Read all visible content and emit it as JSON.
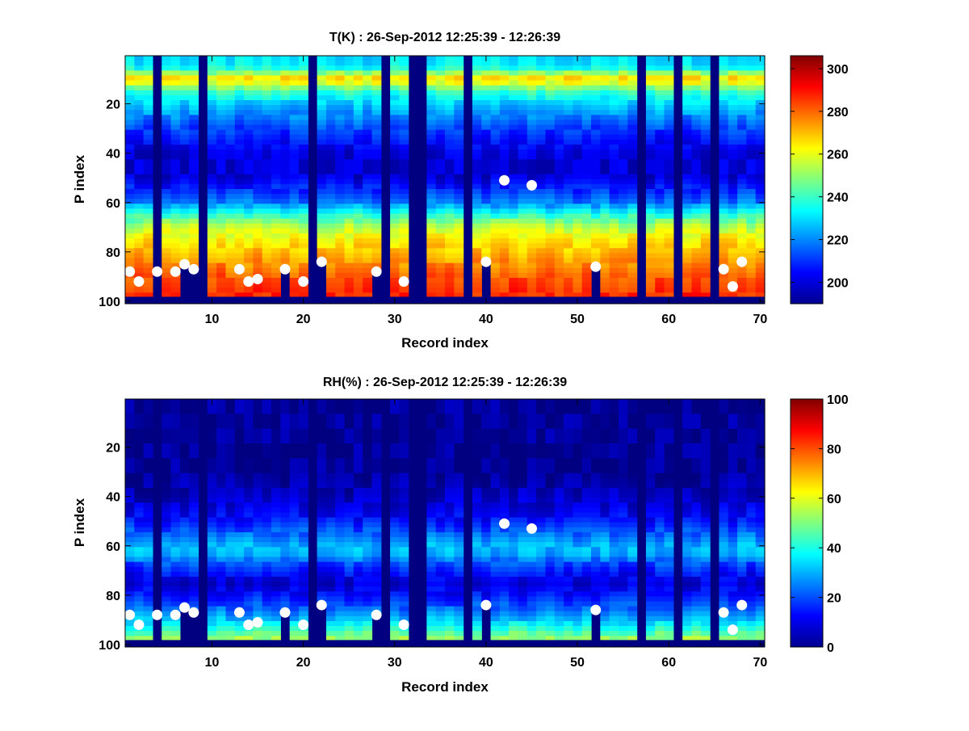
{
  "chart_data": [
    {
      "type": "heatmap",
      "title": "T(K) : 26-Sep-2012 12:25:39 - 12:26:39",
      "xlabel": "Record index",
      "ylabel": "P index",
      "xlim": [
        0.5,
        70.5
      ],
      "ylim": [
        0.5,
        101
      ],
      "y_reversed": true,
      "x_ticks": [
        "10",
        "20",
        "30",
        "40",
        "50",
        "60",
        "70"
      ],
      "y_ticks": [
        "20",
        "40",
        "60",
        "80",
        "100"
      ],
      "colormap": "jet",
      "clim": [
        190,
        306
      ],
      "colorbar_ticks": [
        "200",
        "220",
        "240",
        "260",
        "280",
        "300"
      ],
      "missing_records": [
        4,
        9,
        21,
        29,
        32,
        33,
        38,
        57,
        61,
        65
      ],
      "partial_records": [
        {
          "record": 7,
          "to_level": 85
        },
        {
          "record": 8,
          "to_level": 87
        },
        {
          "record": 18,
          "to_level": 87
        },
        {
          "record": 22,
          "to_level": 84
        },
        {
          "record": 28,
          "to_level": 88
        },
        {
          "record": 40,
          "to_level": 84
        },
        {
          "record": 52,
          "to_level": 86
        }
      ],
      "profile": {
        "levels": [
          1,
          5,
          10,
          15,
          20,
          30,
          40,
          50,
          60,
          65,
          70,
          75,
          80,
          85,
          90,
          95,
          98
        ],
        "values": [
          230,
          232,
          268,
          240,
          228,
          212,
          200,
          200,
          218,
          238,
          255,
          264,
          270,
          276,
          282,
          285,
          288
        ]
      },
      "markers": [
        {
          "x": 1,
          "y": 88
        },
        {
          "x": 2,
          "y": 92
        },
        {
          "x": 4,
          "y": 88
        },
        {
          "x": 6,
          "y": 88
        },
        {
          "x": 7,
          "y": 85
        },
        {
          "x": 8,
          "y": 87
        },
        {
          "x": 13,
          "y": 87
        },
        {
          "x": 14,
          "y": 92
        },
        {
          "x": 15,
          "y": 91
        },
        {
          "x": 18,
          "y": 87
        },
        {
          "x": 20,
          "y": 92
        },
        {
          "x": 22,
          "y": 84
        },
        {
          "x": 28,
          "y": 88
        },
        {
          "x": 31,
          "y": 92
        },
        {
          "x": 40,
          "y": 84
        },
        {
          "x": 42,
          "y": 51
        },
        {
          "x": 45,
          "y": 53
        },
        {
          "x": 52,
          "y": 86
        },
        {
          "x": 66,
          "y": 87
        },
        {
          "x": 67,
          "y": 94
        },
        {
          "x": 68,
          "y": 84
        }
      ]
    },
    {
      "type": "heatmap",
      "title": "RH(%) : 26-Sep-2012 12:25:39 - 12:26:39",
      "xlabel": "Record index",
      "ylabel": "P index",
      "xlim": [
        0.5,
        70.5
      ],
      "ylim": [
        0.5,
        101
      ],
      "y_reversed": true,
      "x_ticks": [
        "10",
        "20",
        "30",
        "40",
        "50",
        "60",
        "70"
      ],
      "y_ticks": [
        "20",
        "40",
        "60",
        "80",
        "100"
      ],
      "colormap": "jet",
      "clim": [
        0,
        100
      ],
      "colorbar_ticks": [
        "0",
        "20",
        "40",
        "60",
        "80",
        "100"
      ],
      "missing_records": [
        4,
        9,
        21,
        29,
        32,
        33,
        38,
        57,
        61,
        65
      ],
      "partial_records": [
        {
          "record": 7,
          "to_level": 85
        },
        {
          "record": 8,
          "to_level": 87
        },
        {
          "record": 18,
          "to_level": 87
        },
        {
          "record": 22,
          "to_level": 84
        },
        {
          "record": 28,
          "to_level": 88
        },
        {
          "record": 40,
          "to_level": 84
        },
        {
          "record": 52,
          "to_level": 86
        }
      ],
      "profile": {
        "levels": [
          1,
          30,
          40,
          50,
          55,
          60,
          63,
          68,
          75,
          80,
          85,
          90,
          95,
          98
        ],
        "values": [
          2,
          2,
          6,
          14,
          22,
          30,
          30,
          18,
          8,
          14,
          22,
          32,
          45,
          55
        ]
      },
      "markers": [
        {
          "x": 1,
          "y": 88
        },
        {
          "x": 2,
          "y": 92
        },
        {
          "x": 4,
          "y": 88
        },
        {
          "x": 6,
          "y": 88
        },
        {
          "x": 7,
          "y": 85
        },
        {
          "x": 8,
          "y": 87
        },
        {
          "x": 13,
          "y": 87
        },
        {
          "x": 14,
          "y": 92
        },
        {
          "x": 15,
          "y": 91
        },
        {
          "x": 18,
          "y": 87
        },
        {
          "x": 20,
          "y": 92
        },
        {
          "x": 22,
          "y": 84
        },
        {
          "x": 28,
          "y": 88
        },
        {
          "x": 31,
          "y": 92
        },
        {
          "x": 40,
          "y": 84
        },
        {
          "x": 42,
          "y": 51
        },
        {
          "x": 45,
          "y": 53
        },
        {
          "x": 52,
          "y": 86
        },
        {
          "x": 66,
          "y": 87
        },
        {
          "x": 67,
          "y": 94
        },
        {
          "x": 68,
          "y": 84
        }
      ]
    }
  ]
}
